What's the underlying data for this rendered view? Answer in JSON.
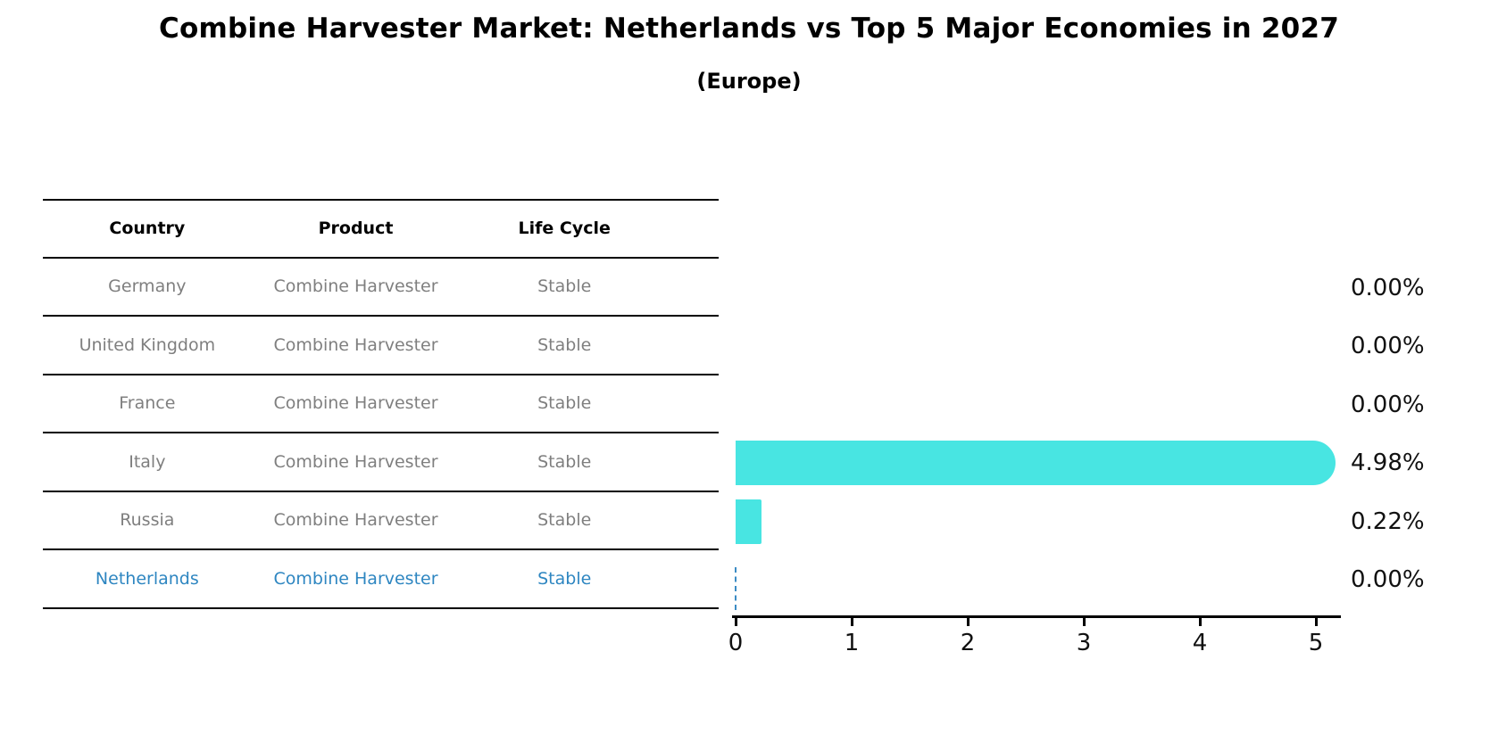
{
  "title": "Combine Harvester Market: Netherlands vs Top 5 Major Economies in 2027",
  "subtitle": "(Europe)",
  "table": {
    "headers": [
      "Country",
      "Product",
      "Life Cycle"
    ],
    "rows": [
      {
        "country": "Germany",
        "product": "Combine Harvester",
        "life_cycle": "Stable"
      },
      {
        "country": "United Kingdom",
        "product": "Combine Harvester",
        "life_cycle": "Stable"
      },
      {
        "country": "France",
        "product": "Combine Harvester",
        "life_cycle": "Stable"
      },
      {
        "country": "Italy",
        "product": "Combine Harvester",
        "life_cycle": "Stable"
      },
      {
        "country": "Russia",
        "product": "Combine Harvester",
        "life_cycle": "Stable"
      },
      {
        "country": "Netherlands",
        "product": "Combine Harvester",
        "life_cycle": "Stable"
      }
    ],
    "highlight_row": "Netherlands"
  },
  "chart_data": {
    "type": "bar",
    "orientation": "horizontal",
    "title": "Combine Harvester Market: Netherlands vs Top 5 Major Economies in 2027 (Europe)",
    "categories": [
      "Germany",
      "United Kingdom",
      "France",
      "Italy",
      "Russia",
      "Netherlands"
    ],
    "values": [
      0.0,
      0.0,
      0.0,
      4.98,
      0.22,
      0.0
    ],
    "value_labels": [
      "0.00%",
      "0.00%",
      "0.00%",
      "4.98%",
      "0.22%",
      "0.00%"
    ],
    "xlabel": "",
    "ylabel": "",
    "xlim": [
      0,
      5.25
    ],
    "xticks": [
      0,
      1,
      2,
      3,
      4,
      5
    ],
    "grid": false,
    "legend": false,
    "bar_color": "#48e5e2",
    "highlight_index": 5,
    "highlight_marker": "dashed-line",
    "highlight_color": "#3b8bc4"
  },
  "colors": {
    "background": "#ffffff",
    "title_text": "#000000",
    "table_line": "#000000",
    "header_text": "#000000",
    "cell_text": "#7f7f7f",
    "highlight_text": "#2e86c1",
    "axis": "#000000",
    "value_label_text": "#111111"
  }
}
